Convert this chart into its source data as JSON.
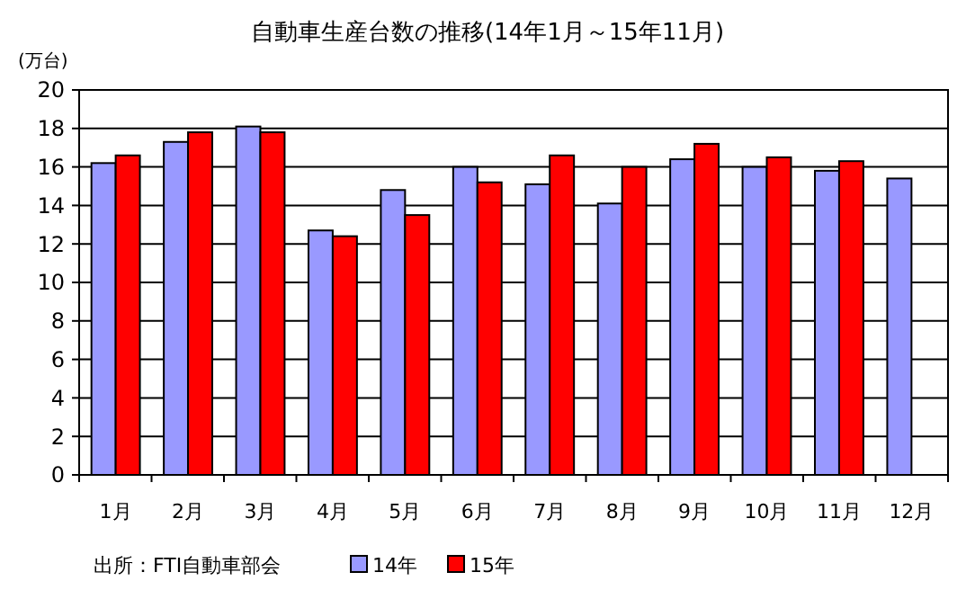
{
  "chart_data": {
    "type": "bar",
    "title": "自動車生産台数の推移(14年1月～15年11月)",
    "ylabel": "(万台)",
    "categories": [
      "1月",
      "2月",
      "3月",
      "4月",
      "5月",
      "6月",
      "7月",
      "8月",
      "9月",
      "10月",
      "11月",
      "12月"
    ],
    "series": [
      {
        "name": "14年",
        "color": "#9999ff",
        "values": [
          16.2,
          17.3,
          18.1,
          12.7,
          14.8,
          16.0,
          15.1,
          14.1,
          16.4,
          16.0,
          15.8,
          15.4
        ]
      },
      {
        "name": "15年",
        "color": "#ff0000",
        "values": [
          16.6,
          17.8,
          17.8,
          12.4,
          13.5,
          15.2,
          16.6,
          16.0,
          17.2,
          16.5,
          16.3,
          null
        ]
      }
    ],
    "ylim": [
      0,
      20
    ],
    "yticks": [
      0,
      2,
      4,
      6,
      8,
      10,
      12,
      14,
      16,
      18,
      20
    ],
    "grid": "y",
    "legend": "bottom",
    "annotations": [
      "出所：FTI自動車部会"
    ]
  }
}
